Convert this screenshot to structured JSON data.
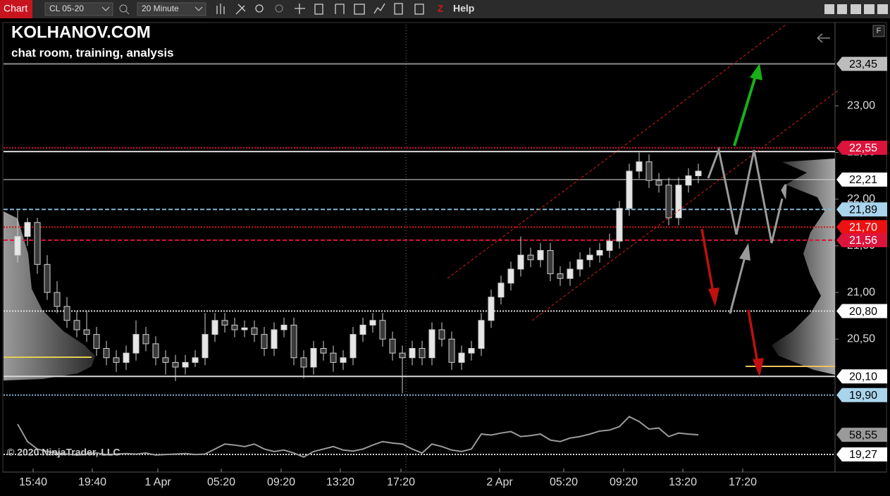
{
  "toolbar": {
    "tab": "Chart",
    "instrument": "CL 05-20",
    "interval": "20 Minute",
    "help": "Help"
  },
  "chart_data": {
    "type": "candlestick",
    "title": "KOLHANOV.COM",
    "subtitle": "chat room, training, analysis",
    "copyright": "© 2020 NinjaTrader, LLC",
    "up_color": "#e6e6e6",
    "down_color": "#3a3a3a",
    "x_labels": [
      "15:40",
      "19:40",
      "1 Apr",
      "05:20",
      "09:20",
      "13:20",
      "17:20",
      "2 Apr",
      "05:20",
      "09:20",
      "13:20",
      "17:20"
    ],
    "candles": [
      [
        21.4,
        21.88,
        21.32,
        21.6
      ],
      [
        21.6,
        21.8,
        21.5,
        21.75
      ],
      [
        21.75,
        21.8,
        21.2,
        21.3
      ],
      [
        21.3,
        21.4,
        20.92,
        21.0
      ],
      [
        21.0,
        21.12,
        20.78,
        20.85
      ],
      [
        20.85,
        20.95,
        20.62,
        20.7
      ],
      [
        20.7,
        20.8,
        20.52,
        20.6
      ],
      [
        20.6,
        20.8,
        20.47,
        20.55
      ],
      [
        20.55,
        20.63,
        20.32,
        20.4
      ],
      [
        20.4,
        20.48,
        20.22,
        20.3
      ],
      [
        20.3,
        20.38,
        20.15,
        20.25
      ],
      [
        20.25,
        20.43,
        20.17,
        20.35
      ],
      [
        20.35,
        20.7,
        20.27,
        20.55
      ],
      [
        20.55,
        20.63,
        20.37,
        20.45
      ],
      [
        20.45,
        20.53,
        20.22,
        20.3
      ],
      [
        20.3,
        20.38,
        20.12,
        20.25
      ],
      [
        20.25,
        20.33,
        20.05,
        20.2
      ],
      [
        20.2,
        20.33,
        20.12,
        20.25
      ],
      [
        20.25,
        20.38,
        20.2,
        20.3
      ],
      [
        20.3,
        20.78,
        20.22,
        20.55
      ],
      [
        20.55,
        20.78,
        20.47,
        20.7
      ],
      [
        20.7,
        20.78,
        20.57,
        20.65
      ],
      [
        20.65,
        20.73,
        20.52,
        20.6
      ],
      [
        20.6,
        20.7,
        20.52,
        20.62
      ],
      [
        20.62,
        20.7,
        20.47,
        20.55
      ],
      [
        20.55,
        20.63,
        20.32,
        20.4
      ],
      [
        20.4,
        20.68,
        20.32,
        20.6
      ],
      [
        20.6,
        20.73,
        20.52,
        20.65
      ],
      [
        20.65,
        20.73,
        20.22,
        20.3
      ],
      [
        20.3,
        20.38,
        20.08,
        20.2
      ],
      [
        20.2,
        20.48,
        20.12,
        20.4
      ],
      [
        20.4,
        20.48,
        20.27,
        20.35
      ],
      [
        20.35,
        20.43,
        20.15,
        20.25
      ],
      [
        20.25,
        20.38,
        20.17,
        20.3
      ],
      [
        20.3,
        20.63,
        20.22,
        20.55
      ],
      [
        20.55,
        20.73,
        20.47,
        20.65
      ],
      [
        20.65,
        20.78,
        20.57,
        20.7
      ],
      [
        20.7,
        20.78,
        20.42,
        20.5
      ],
      [
        20.5,
        20.58,
        20.27,
        20.35
      ],
      [
        20.35,
        20.43,
        19.92,
        20.3
      ],
      [
        20.3,
        20.48,
        20.22,
        20.4
      ],
      [
        20.4,
        20.48,
        20.22,
        20.3
      ],
      [
        20.3,
        20.68,
        20.22,
        20.6
      ],
      [
        20.6,
        20.68,
        20.42,
        20.5
      ],
      [
        20.5,
        20.58,
        20.17,
        20.25
      ],
      [
        20.25,
        20.43,
        20.17,
        20.35
      ],
      [
        20.35,
        20.48,
        20.27,
        20.4
      ],
      [
        20.4,
        20.78,
        20.32,
        20.7
      ],
      [
        20.7,
        21.03,
        20.62,
        20.95
      ],
      [
        20.95,
        21.18,
        20.87,
        21.1
      ],
      [
        21.1,
        21.33,
        21.02,
        21.25
      ],
      [
        21.25,
        21.6,
        21.17,
        21.4
      ],
      [
        21.4,
        21.48,
        21.27,
        21.35
      ],
      [
        21.35,
        21.53,
        21.27,
        21.45
      ],
      [
        21.45,
        21.53,
        21.12,
        21.2
      ],
      [
        21.2,
        21.28,
        21.07,
        21.15
      ],
      [
        21.15,
        21.33,
        21.07,
        21.25
      ],
      [
        21.25,
        21.43,
        21.17,
        21.35
      ],
      [
        21.35,
        21.48,
        21.27,
        21.4
      ],
      [
        21.4,
        21.53,
        21.32,
        21.45
      ],
      [
        21.45,
        21.63,
        21.37,
        21.55
      ],
      [
        21.55,
        21.98,
        21.47,
        21.9
      ],
      [
        21.9,
        22.38,
        21.82,
        22.3
      ],
      [
        22.3,
        22.5,
        22.22,
        22.4
      ],
      [
        22.4,
        22.48,
        22.12,
        22.2
      ],
      [
        22.2,
        22.28,
        22.07,
        22.15
      ],
      [
        22.15,
        22.23,
        21.72,
        21.8
      ],
      [
        21.8,
        22.23,
        21.72,
        22.15
      ],
      [
        22.15,
        22.33,
        22.07,
        22.25
      ],
      [
        22.25,
        22.38,
        22.17,
        22.3
      ]
    ],
    "ylim": [
      19.83,
      23.87
    ],
    "yticks": [
      {
        "value": 23,
        "label": "23,00"
      },
      {
        "value": 22.5,
        "label": "22,50"
      },
      {
        "value": 22,
        "label": "22,00"
      },
      {
        "value": 21.5,
        "label": "21,50"
      },
      {
        "value": 21,
        "label": "21,00"
      },
      {
        "value": 20.5,
        "label": "20,50"
      }
    ],
    "levels": [
      {
        "value": 23.45,
        "label": "23,45",
        "color": "#8c8c8c",
        "style": "solid",
        "label_bg": "#bdbdbd",
        "label_fg": "#000"
      },
      {
        "value": 22.55,
        "label": "22,55",
        "color": "#dc143c",
        "style": "dotted",
        "label_bg": "#dc143c",
        "label_fg": "#fff"
      },
      {
        "value": 22.51,
        "color": "#d8d8d8",
        "style": "solid"
      },
      {
        "value": 22.21,
        "label": "22,21",
        "color": "#d8d8d8",
        "style": "thin",
        "label_bg": "#fff",
        "label_fg": "#000"
      },
      {
        "value": 21.89,
        "label": "21,89",
        "color": "#7fb6d4",
        "style": "dashed",
        "label_bg": "#a9d5ec",
        "label_fg": "#000"
      },
      {
        "value": 21.7,
        "label": "21,70",
        "color": "#e01010",
        "style": "dotted",
        "label_bg": "#ee1111",
        "label_fg": "#fff"
      },
      {
        "value": 21.56,
        "label": "21,56",
        "color": "#dc143c",
        "style": "dashed",
        "label_bg": "#dc143c",
        "label_fg": "#fff"
      },
      {
        "value": 20.8,
        "label": "20,80",
        "color": "#e0e0e0",
        "style": "dotted",
        "label_bg": "#fff",
        "label_fg": "#000"
      },
      {
        "value": 20.1,
        "label": "20,10",
        "color": "#d8d8d8",
        "style": "solid",
        "label_bg": "#fff",
        "label_fg": "#000"
      },
      {
        "value": 19.9,
        "label": "19,90",
        "color": "#7fb6d4",
        "style": "dotted",
        "label_bg": "#a9d5ec",
        "label_fg": "#000"
      }
    ],
    "indicator": {
      "color": "#9a9a9a",
      "ylim": [
        -9,
        118
      ],
      "values": [
        80,
        45,
        30,
        25,
        22,
        20,
        18,
        20,
        22,
        19,
        20,
        21,
        20,
        22,
        18,
        19,
        20,
        21,
        19,
        20,
        30,
        40,
        38,
        35,
        40,
        30,
        25,
        28,
        22,
        14,
        25,
        30,
        35,
        28,
        26,
        30,
        38,
        45,
        42,
        40,
        30,
        22,
        40,
        35,
        28,
        25,
        30,
        60,
        58,
        62,
        65,
        55,
        57,
        60,
        48,
        45,
        52,
        55,
        60,
        66,
        68,
        75,
        95,
        85,
        70,
        72,
        55,
        62,
        60,
        58.55
      ],
      "value_label": "58,55",
      "level": {
        "value": 19.27,
        "label": "19,27"
      }
    }
  }
}
